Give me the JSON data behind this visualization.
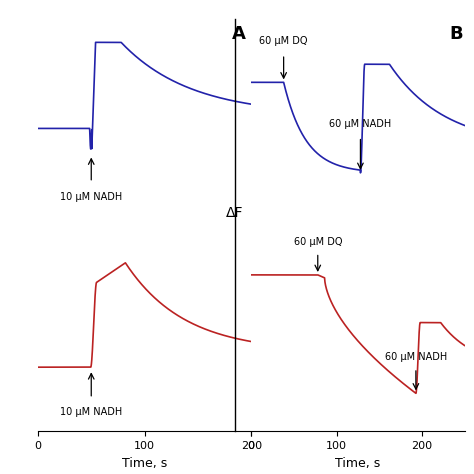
{
  "blue_color": "#2222aa",
  "red_color": "#bb2222",
  "panel_A_label": "A",
  "panel_B_label": "B",
  "delta_F_label": "ΔF",
  "xlabel": "Time, s",
  "ann_A_blue": "10 μM NADH",
  "ann_A_red": "10 μM NADH",
  "ann_B_blue_dq": "60 μM DQ",
  "ann_B_blue_nadh": "60 μM NADH",
  "ann_B_red_dq": "60 μM DQ",
  "ann_B_red_nadh": "60 μM NADH",
  "figsize": [
    4.74,
    4.74
  ],
  "dpi": 100
}
